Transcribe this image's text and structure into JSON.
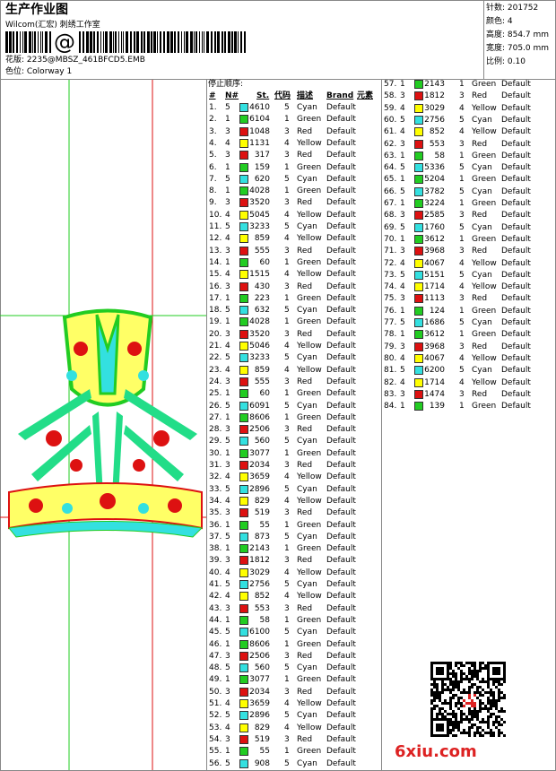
{
  "header": {
    "title": "生产作业图",
    "studio": "Wilcom(汇宏) 刺绣工作室",
    "barcode_symbol": "@",
    "design": "花版: 2235@MBSZ_461BFCD5.EMB",
    "colorway": "色位: Colorway 1"
  },
  "info": [
    "针数: 201752",
    "颜色: 4",
    "高度: 854.7 mm",
    "宽度: 705.0 mm",
    "比例: 0.10"
  ],
  "table": {
    "caption": "停止顺序:",
    "columns": [
      "#",
      "N#",
      "St.",
      "代码",
      "描述",
      "Brand",
      "元素"
    ],
    "swatch_colors": {
      "1": "#22cc22",
      "3": "#dd1111",
      "4": "#ffff00",
      "5": "#33e0e0"
    },
    "rows": [
      [
        "1.",
        "5",
        4610,
        "5",
        "Cyan",
        "Default"
      ],
      [
        "2.",
        "1",
        6104,
        "1",
        "Green",
        "Default"
      ],
      [
        "3.",
        "3",
        1048,
        "3",
        "Red",
        "Default"
      ],
      [
        "4.",
        "4",
        1131,
        "4",
        "Yellow",
        "Default"
      ],
      [
        "5.",
        "3",
        317,
        "3",
        "Red",
        "Default"
      ],
      [
        "6.",
        "1",
        159,
        "1",
        "Green",
        "Default"
      ],
      [
        "7.",
        "5",
        620,
        "5",
        "Cyan",
        "Default"
      ],
      [
        "8.",
        "1",
        4028,
        "1",
        "Green",
        "Default"
      ],
      [
        "9.",
        "3",
        3520,
        "3",
        "Red",
        "Default"
      ],
      [
        "10.",
        "4",
        5045,
        "4",
        "Yellow",
        "Default"
      ],
      [
        "11.",
        "5",
        3233,
        "5",
        "Cyan",
        "Default"
      ],
      [
        "12.",
        "4",
        859,
        "4",
        "Yellow",
        "Default"
      ],
      [
        "13.",
        "3",
        555,
        "3",
        "Red",
        "Default"
      ],
      [
        "14.",
        "1",
        60,
        "1",
        "Green",
        "Default"
      ],
      [
        "15.",
        "4",
        1515,
        "4",
        "Yellow",
        "Default"
      ],
      [
        "16.",
        "3",
        430,
        "3",
        "Red",
        "Default"
      ],
      [
        "17.",
        "1",
        223,
        "1",
        "Green",
        "Default"
      ],
      [
        "18.",
        "5",
        632,
        "5",
        "Cyan",
        "Default"
      ],
      [
        "19.",
        "1",
        4028,
        "1",
        "Green",
        "Default"
      ],
      [
        "20.",
        "3",
        3520,
        "3",
        "Red",
        "Default"
      ],
      [
        "21.",
        "4",
        5046,
        "4",
        "Yellow",
        "Default"
      ],
      [
        "22.",
        "5",
        3233,
        "5",
        "Cyan",
        "Default"
      ],
      [
        "23.",
        "4",
        859,
        "4",
        "Yellow",
        "Default"
      ],
      [
        "24.",
        "3",
        555,
        "3",
        "Red",
        "Default"
      ],
      [
        "25.",
        "1",
        60,
        "1",
        "Green",
        "Default"
      ],
      [
        "26.",
        "5",
        6091,
        "5",
        "Cyan",
        "Default"
      ],
      [
        "27.",
        "1",
        8606,
        "1",
        "Green",
        "Default"
      ],
      [
        "28.",
        "3",
        2506,
        "3",
        "Red",
        "Default"
      ],
      [
        "29.",
        "5",
        560,
        "5",
        "Cyan",
        "Default"
      ],
      [
        "30.",
        "1",
        3077,
        "1",
        "Green",
        "Default"
      ],
      [
        "31.",
        "3",
        2034,
        "3",
        "Red",
        "Default"
      ],
      [
        "32.",
        "4",
        3659,
        "4",
        "Yellow",
        "Default"
      ],
      [
        "33.",
        "5",
        2896,
        "5",
        "Cyan",
        "Default"
      ],
      [
        "34.",
        "4",
        829,
        "4",
        "Yellow",
        "Default"
      ],
      [
        "35.",
        "3",
        519,
        "3",
        "Red",
        "Default"
      ],
      [
        "36.",
        "1",
        55,
        "1",
        "Green",
        "Default"
      ],
      [
        "37.",
        "5",
        873,
        "5",
        "Cyan",
        "Default"
      ],
      [
        "38.",
        "1",
        2143,
        "1",
        "Green",
        "Default"
      ],
      [
        "39.",
        "3",
        1812,
        "3",
        "Red",
        "Default"
      ],
      [
        "40.",
        "4",
        3029,
        "4",
        "Yellow",
        "Default"
      ],
      [
        "41.",
        "5",
        2756,
        "5",
        "Cyan",
        "Default"
      ],
      [
        "42.",
        "4",
        852,
        "4",
        "Yellow",
        "Default"
      ],
      [
        "43.",
        "3",
        553,
        "3",
        "Red",
        "Default"
      ],
      [
        "44.",
        "1",
        58,
        "1",
        "Green",
        "Default"
      ],
      [
        "45.",
        "5",
        6100,
        "5",
        "Cyan",
        "Default"
      ],
      [
        "46.",
        "1",
        8606,
        "1",
        "Green",
        "Default"
      ],
      [
        "47.",
        "3",
        2506,
        "3",
        "Red",
        "Default"
      ],
      [
        "48.",
        "5",
        560,
        "5",
        "Cyan",
        "Default"
      ],
      [
        "49.",
        "1",
        3077,
        "1",
        "Green",
        "Default"
      ],
      [
        "50.",
        "3",
        2034,
        "3",
        "Red",
        "Default"
      ],
      [
        "51.",
        "4",
        3659,
        "4",
        "Yellow",
        "Default"
      ],
      [
        "52.",
        "5",
        2896,
        "5",
        "Cyan",
        "Default"
      ],
      [
        "53.",
        "4",
        829,
        "4",
        "Yellow",
        "Default"
      ],
      [
        "54.",
        "3",
        519,
        "3",
        "Red",
        "Default"
      ],
      [
        "55.",
        "1",
        55,
        "1",
        "Green",
        "Default"
      ],
      [
        "56.",
        "5",
        908,
        "5",
        "Cyan",
        "Default"
      ],
      [
        "57.",
        "1",
        2143,
        "1",
        "Green",
        "Default"
      ],
      [
        "58.",
        "3",
        1812,
        "3",
        "Red",
        "Default"
      ],
      [
        "59.",
        "4",
        3029,
        "4",
        "Yellow",
        "Default"
      ],
      [
        "60.",
        "5",
        2756,
        "5",
        "Cyan",
        "Default"
      ],
      [
        "61.",
        "4",
        852,
        "4",
        "Yellow",
        "Default"
      ],
      [
        "62.",
        "3",
        553,
        "3",
        "Red",
        "Default"
      ],
      [
        "63.",
        "1",
        58,
        "1",
        "Green",
        "Default"
      ],
      [
        "64.",
        "5",
        5336,
        "5",
        "Cyan",
        "Default"
      ],
      [
        "65.",
        "1",
        5204,
        "1",
        "Green",
        "Default"
      ],
      [
        "66.",
        "5",
        3782,
        "5",
        "Cyan",
        "Default"
      ],
      [
        "67.",
        "1",
        3224,
        "1",
        "Green",
        "Default"
      ],
      [
        "68.",
        "3",
        2585,
        "3",
        "Red",
        "Default"
      ],
      [
        "69.",
        "5",
        1760,
        "5",
        "Cyan",
        "Default"
      ],
      [
        "70.",
        "1",
        3612,
        "1",
        "Green",
        "Default"
      ],
      [
        "71.",
        "3",
        3968,
        "3",
        "Red",
        "Default"
      ],
      [
        "72.",
        "4",
        4067,
        "4",
        "Yellow",
        "Default"
      ],
      [
        "73.",
        "5",
        5151,
        "5",
        "Cyan",
        "Default"
      ],
      [
        "74.",
        "4",
        1714,
        "4",
        "Yellow",
        "Default"
      ],
      [
        "75.",
        "3",
        1113,
        "3",
        "Red",
        "Default"
      ],
      [
        "76.",
        "1",
        124,
        "1",
        "Green",
        "Default"
      ],
      [
        "77.",
        "5",
        1686,
        "5",
        "Cyan",
        "Default"
      ],
      [
        "78.",
        "1",
        3612,
        "1",
        "Green",
        "Default"
      ],
      [
        "79.",
        "3",
        3968,
        "3",
        "Red",
        "Default"
      ],
      [
        "80.",
        "4",
        4067,
        "4",
        "Yellow",
        "Default"
      ],
      [
        "81.",
        "5",
        6200,
        "5",
        "Cyan",
        "Default"
      ],
      [
        "82.",
        "4",
        1714,
        "4",
        "Yellow",
        "Default"
      ],
      [
        "83.",
        "3",
        1474,
        "3",
        "Red",
        "Default"
      ],
      [
        "84.",
        "1",
        139,
        "1",
        "Green",
        "Default"
      ]
    ]
  },
  "watermark": "6xiu.com"
}
